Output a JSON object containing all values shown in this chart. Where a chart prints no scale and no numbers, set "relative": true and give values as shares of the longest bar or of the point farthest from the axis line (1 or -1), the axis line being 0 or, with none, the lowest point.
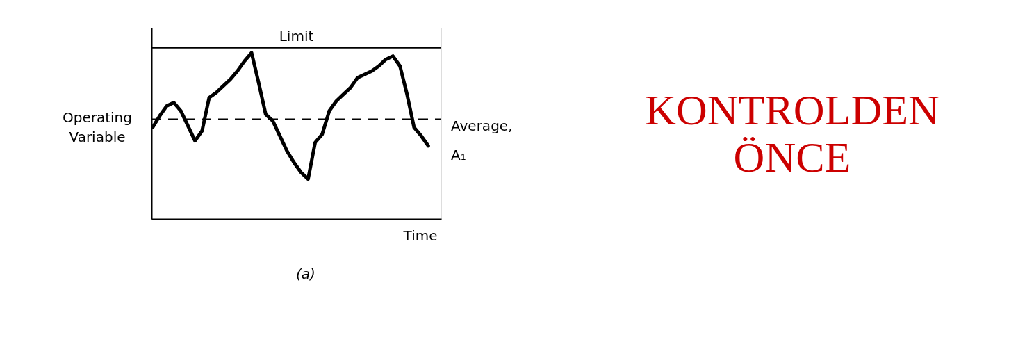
{
  "chart_data": {
    "type": "line",
    "relative": true,
    "xlabel": "Time",
    "ylabel": "Operating Variable",
    "marker": "none",
    "line_style": "solid",
    "categories": [
      null,
      null,
      null,
      null,
      null,
      null,
      null,
      null,
      null,
      null,
      null,
      null,
      null,
      null,
      null,
      null,
      null,
      null,
      null,
      null,
      null,
      null,
      null,
      null,
      null,
      null,
      null,
      null,
      null,
      null,
      null,
      null,
      null,
      null,
      null,
      null,
      null,
      null,
      null,
      null
    ],
    "series": [
      {
        "color": "#000000",
        "values": [
          0.55,
          0.62,
          0.68,
          0.7,
          0.65,
          0.56,
          0.47,
          0.53,
          0.73,
          0.76,
          0.8,
          0.84,
          0.89,
          0.95,
          1.0,
          0.82,
          0.63,
          0.59,
          0.5,
          0.41,
          0.34,
          0.28,
          0.24,
          0.46,
          0.51,
          0.65,
          0.71,
          0.75,
          0.79,
          0.85,
          0.87,
          0.89,
          0.92,
          0.96,
          0.98,
          0.92,
          0.75,
          0.55,
          0.5,
          0.44
        ]
      }
    ],
    "ref_lines": [
      {
        "axis": "y",
        "value": 1.03,
        "label": "Limit",
        "line_style": "solid",
        "color": "#000000"
      },
      {
        "axis": "y",
        "value": 0.6,
        "label": "Average, A₁",
        "line_style": "dashed",
        "color": "#000000"
      }
    ],
    "annotations": [
      "(a)",
      "KONTROLDEN ÖNCE"
    ]
  }
}
